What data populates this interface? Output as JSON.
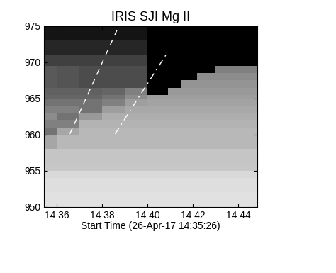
{
  "chart_data": {
    "type": "image",
    "title": "IRIS SJI Mg II",
    "x_label": "Start Time (26-Apr-17 14:35:26)",
    "xlim": [
      35.43,
      44.85
    ],
    "ylim": [
      950,
      975
    ],
    "xticks": [
      {
        "value": 36,
        "label": "14:36"
      },
      {
        "value": 38,
        "label": "14:38"
      },
      {
        "value": 40,
        "label": "14:40"
      },
      {
        "value": 42,
        "label": "14:42"
      },
      {
        "value": 44,
        "label": "14:44"
      }
    ],
    "yticks": [
      950,
      955,
      960,
      965,
      970,
      975
    ],
    "color": "gray",
    "zlim": [
      0,
      1
    ],
    "x_edges": [
      35.43,
      36,
      37,
      38,
      39,
      40,
      40.9,
      41.5,
      42.2,
      43,
      44.85
    ],
    "y_edges": [
      950,
      952,
      954,
      955,
      956,
      958,
      960,
      961,
      962,
      963,
      964,
      965,
      965.5,
      966.5,
      967.5,
      968.5,
      969.5,
      971,
      973,
      975
    ],
    "cells": [
      [
        0.88,
        0.88,
        0.88,
        0.88,
        0.88,
        0.88,
        0.88,
        0.88,
        0.88,
        0.88
      ],
      [
        0.87,
        0.87,
        0.87,
        0.87,
        0.87,
        0.87,
        0.87,
        0.87,
        0.87,
        0.87
      ],
      [
        0.85,
        0.85,
        0.85,
        0.85,
        0.85,
        0.85,
        0.85,
        0.85,
        0.85,
        0.85
      ],
      [
        0.78,
        0.78,
        0.78,
        0.78,
        0.78,
        0.78,
        0.78,
        0.78,
        0.78,
        0.78
      ],
      [
        0.77,
        0.77,
        0.77,
        0.77,
        0.77,
        0.77,
        0.77,
        0.77,
        0.77,
        0.77
      ],
      [
        0.65,
        0.72,
        0.72,
        0.72,
        0.72,
        0.72,
        0.72,
        0.72,
        0.72,
        0.72
      ],
      [
        0.45,
        0.65,
        0.72,
        0.72,
        0.72,
        0.72,
        0.72,
        0.72,
        0.72,
        0.72
      ],
      [
        0.5,
        0.5,
        0.7,
        0.7,
        0.7,
        0.7,
        0.7,
        0.7,
        0.7,
        0.7
      ],
      [
        0.55,
        0.45,
        0.6,
        0.68,
        0.68,
        0.68,
        0.68,
        0.68,
        0.68,
        0.68
      ],
      [
        0.5,
        0.5,
        0.45,
        0.62,
        0.66,
        0.66,
        0.66,
        0.66,
        0.66,
        0.66
      ],
      [
        0.45,
        0.45,
        0.45,
        0.5,
        0.62,
        0.64,
        0.64,
        0.64,
        0.64,
        0.64
      ],
      [
        0.4,
        0.4,
        0.4,
        0.45,
        0.55,
        0.62,
        0.62,
        0.62,
        0.62,
        0.62
      ],
      [
        0.38,
        0.38,
        0.38,
        0.4,
        0.5,
        0.0,
        0.6,
        0.6,
        0.6,
        0.6
      ],
      [
        0.35,
        0.33,
        0.3,
        0.3,
        0.3,
        0.0,
        0.0,
        0.58,
        0.58,
        0.58
      ],
      [
        0.35,
        0.33,
        0.3,
        0.3,
        0.3,
        0.0,
        0.0,
        0.0,
        0.55,
        0.55
      ],
      [
        0.35,
        0.33,
        0.3,
        0.3,
        0.3,
        0.0,
        0.0,
        0.0,
        0.0,
        0.5
      ],
      [
        0.25,
        0.25,
        0.25,
        0.25,
        0.25,
        0.0,
        0.0,
        0.0,
        0.0,
        0.0
      ],
      [
        0.15,
        0.15,
        0.15,
        0.15,
        0.15,
        0.0,
        0.0,
        0.0,
        0.0,
        0.0
      ],
      [
        0.08,
        0.08,
        0.08,
        0.08,
        0.08,
        0.0,
        0.0,
        0.0,
        0.0,
        0.0
      ]
    ],
    "series": [
      {
        "x": [
          36.57,
          38.73
        ],
        "y": [
          960.1,
          975
        ],
        "line_style": "dashed",
        "color": "#ffffff"
      },
      {
        "x": [
          38.57,
          40.89
        ],
        "y": [
          960.1,
          971.4
        ],
        "line_style": "dashdot",
        "color": "#ffffff"
      }
    ]
  }
}
